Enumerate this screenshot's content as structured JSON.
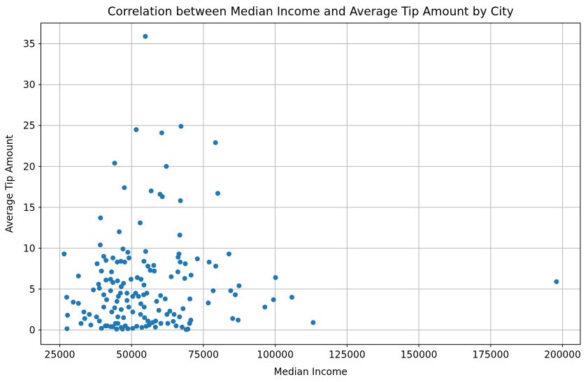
{
  "figure": {
    "background_color": "#ffffff"
  },
  "chart_data": {
    "type": "scatter",
    "title": "Correlation between Median Income and Average Tip Amount by City",
    "xlabel": "Median Income",
    "ylabel": "Average Tip Amount",
    "xlim": [
      18430,
      206200
    ],
    "ylim": [
      -1.78,
      37.53
    ],
    "x_ticks": [
      25000,
      50000,
      75000,
      100000,
      125000,
      150000,
      175000,
      200000
    ],
    "y_ticks": [
      0,
      5,
      10,
      15,
      20,
      25,
      30,
      35
    ],
    "grid": true,
    "legend": false,
    "marker_color": "#1f77b4",
    "grid_color": "#b0b0b0",
    "axis_color": "#000000",
    "text_color": "#000000",
    "marker_radius": 3.5,
    "points": [
      [
        54800,
        35.9
      ],
      [
        51600,
        24.5
      ],
      [
        67200,
        24.9
      ],
      [
        60500,
        24.1
      ],
      [
        79200,
        22.9
      ],
      [
        44100,
        20.4
      ],
      [
        62100,
        20.0
      ],
      [
        47500,
        17.4
      ],
      [
        56800,
        17.0
      ],
      [
        59900,
        16.6
      ],
      [
        60700,
        16.3
      ],
      [
        80000,
        16.7
      ],
      [
        67000,
        15.8
      ],
      [
        39200,
        13.7
      ],
      [
        53000,
        13.1
      ],
      [
        45700,
        12.0
      ],
      [
        66800,
        11.6
      ],
      [
        39100,
        10.4
      ],
      [
        26500,
        9.3
      ],
      [
        47000,
        9.9
      ],
      [
        48700,
        9.5
      ],
      [
        54900,
        9.6
      ],
      [
        66500,
        9.3
      ],
      [
        83900,
        9.3
      ],
      [
        40300,
        9.0
      ],
      [
        43500,
        8.8
      ],
      [
        49100,
        8.8
      ],
      [
        66200,
        8.9
      ],
      [
        72900,
        8.7
      ],
      [
        45000,
        8.3
      ],
      [
        46300,
        8.4
      ],
      [
        47600,
        8.3
      ],
      [
        38000,
        8.1
      ],
      [
        41100,
        8.5
      ],
      [
        54300,
        8.4
      ],
      [
        66900,
        8.3
      ],
      [
        68700,
        8.1
      ],
      [
        77000,
        8.3
      ],
      [
        79300,
        7.8
      ],
      [
        39500,
        7.2
      ],
      [
        43000,
        7.1
      ],
      [
        55700,
        7.8
      ],
      [
        56500,
        7.3
      ],
      [
        57700,
        7.9
      ],
      [
        57900,
        7.2
      ],
      [
        31500,
        6.6
      ],
      [
        63800,
        6.5
      ],
      [
        66100,
        7.1
      ],
      [
        68500,
        6.3
      ],
      [
        70700,
        6.7
      ],
      [
        100100,
        6.4
      ],
      [
        41100,
        6.1
      ],
      [
        42700,
        6.2
      ],
      [
        45100,
        6.0
      ],
      [
        49800,
        6.2
      ],
      [
        52000,
        6.4
      ],
      [
        53300,
        6.2
      ],
      [
        43500,
        5.8
      ],
      [
        47200,
        5.7
      ],
      [
        46400,
        5.3
      ],
      [
        54300,
        5.5
      ],
      [
        38500,
        5.6
      ],
      [
        36700,
        4.9
      ],
      [
        38800,
        5.1
      ],
      [
        87400,
        5.4
      ],
      [
        197900,
        5.9
      ],
      [
        84500,
        4.8
      ],
      [
        78400,
        4.8
      ],
      [
        86100,
        4.3
      ],
      [
        42700,
        4.8
      ],
      [
        46100,
        4.5
      ],
      [
        48400,
        4.5
      ],
      [
        51400,
        4.5
      ],
      [
        55300,
        4.5
      ],
      [
        27400,
        4.0
      ],
      [
        40300,
        4.3
      ],
      [
        45400,
        4.1
      ],
      [
        50400,
        4.1
      ],
      [
        52400,
        4.1
      ],
      [
        54200,
        4.3
      ],
      [
        60100,
        4.2
      ],
      [
        105800,
        4.0
      ],
      [
        61700,
        3.8
      ],
      [
        70300,
        3.8
      ],
      [
        29700,
        3.4
      ],
      [
        31500,
        3.25
      ],
      [
        41300,
        3.7
      ],
      [
        44900,
        3.5
      ],
      [
        48400,
        3.6
      ],
      [
        53200,
        3.2
      ],
      [
        58700,
        3.5
      ],
      [
        76700,
        3.3
      ],
      [
        96400,
        2.8
      ],
      [
        99400,
        3.7
      ],
      [
        33400,
        2.2
      ],
      [
        40300,
        2.8
      ],
      [
        44100,
        2.7
      ],
      [
        43100,
        2.2
      ],
      [
        46400,
        2.5
      ],
      [
        49000,
        2.8
      ],
      [
        50400,
        2.2
      ],
      [
        54400,
        2.8
      ],
      [
        59500,
        2.4
      ],
      [
        63300,
        2.3
      ],
      [
        62300,
        1.9
      ],
      [
        64800,
        1.9
      ],
      [
        67900,
        2.6
      ],
      [
        27700,
        1.8
      ],
      [
        33700,
        1.4
      ],
      [
        35300,
        1.9
      ],
      [
        37800,
        1.6
      ],
      [
        38800,
        1.1
      ],
      [
        45200,
        1.6
      ],
      [
        47200,
        1.5
      ],
      [
        53100,
        1.9
      ],
      [
        54500,
        1.5
      ],
      [
        55700,
        1.1
      ],
      [
        58400,
        1.1
      ],
      [
        64500,
        1.05
      ],
      [
        66700,
        1.6
      ],
      [
        70600,
        1.2
      ],
      [
        85200,
        1.4
      ],
      [
        87100,
        1.2
      ],
      [
        113200,
        0.9
      ],
      [
        27500,
        0.15
      ],
      [
        32400,
        0.8
      ],
      [
        35800,
        0.6
      ],
      [
        40900,
        0.5
      ],
      [
        42800,
        0.4
      ],
      [
        44400,
        0.8
      ],
      [
        45200,
        0.8
      ],
      [
        46400,
        0.3
      ],
      [
        47800,
        0.5
      ],
      [
        56100,
        0.6
      ],
      [
        57300,
        0.9
      ],
      [
        58300,
        0.35
      ],
      [
        60200,
        0.8
      ],
      [
        62600,
        0.8
      ],
      [
        65500,
        0.5
      ],
      [
        67600,
        0.35
      ],
      [
        69600,
        0.1
      ],
      [
        69000,
        0.05
      ],
      [
        70200,
        0.8
      ],
      [
        39500,
        0.2
      ],
      [
        41500,
        0.5
      ],
      [
        43500,
        0.4
      ],
      [
        44800,
        0.1
      ],
      [
        46800,
        0.1
      ],
      [
        48700,
        0.15
      ],
      [
        50400,
        0.2
      ],
      [
        51800,
        0.45
      ],
      [
        53600,
        0.3
      ],
      [
        55100,
        0.45
      ]
    ]
  }
}
